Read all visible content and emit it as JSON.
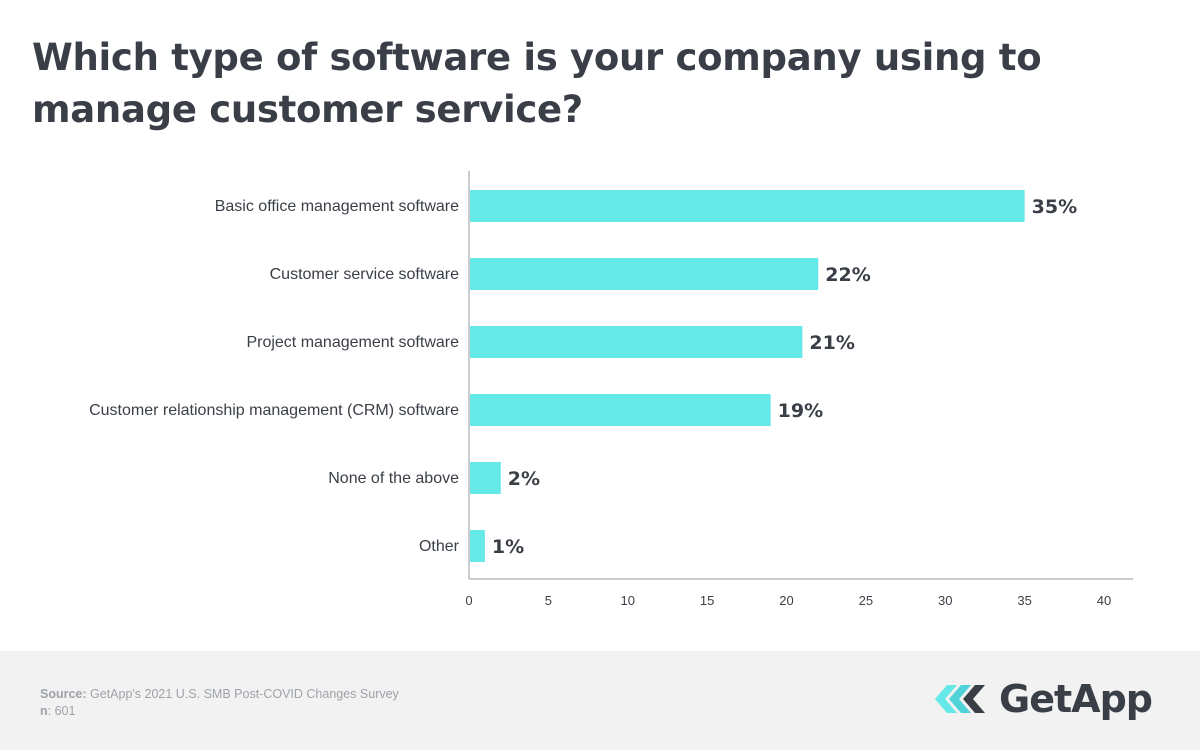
{
  "title": "Which type of software is your company using to manage customer service?",
  "chart_data": {
    "type": "bar",
    "orientation": "horizontal",
    "categories": [
      "Basic office management software",
      "Customer service software",
      "Project management software",
      "Customer relationship management (CRM) software",
      "None of the above",
      "Other"
    ],
    "values": [
      35,
      22,
      21,
      19,
      2,
      1
    ],
    "value_labels": [
      "35%",
      "22%",
      "21%",
      "19%",
      "2%",
      "1%"
    ],
    "xlim": [
      0,
      40
    ],
    "xticks": [
      0,
      5,
      10,
      15,
      20,
      25,
      30,
      35,
      40
    ],
    "bar_color": "#64e8e8",
    "grid": false
  },
  "footer": {
    "source_label": "Source:",
    "source_text": "GetApp's 2021 U.S. SMB Post-COVID Changes Survey",
    "n_label": "n",
    "n_text": ": 601"
  },
  "logo": {
    "text": "GetApp",
    "icon": "getapp-chevrons-icon"
  },
  "colors": {
    "text": "#3a3f47",
    "footer_bg": "#f2f2f2",
    "footer_text": "#9ea3aa",
    "logo_accent": "#64e8e8"
  }
}
